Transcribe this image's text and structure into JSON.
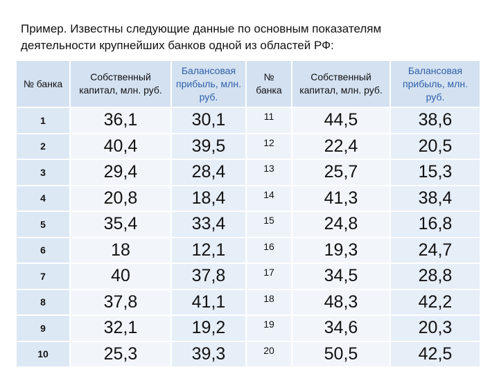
{
  "title": "Пример. Известны следующие данные по основным показателям деятельности крупнейших банков одной из областей РФ:",
  "table": {
    "headers": [
      "№ банка",
      "Собственный капитал, млн. руб.",
      "Балансовая прибыль, млн. руб.",
      "№ банка",
      "Собственный капитал, млн. руб.",
      "Балансовая прибыль, млн. руб."
    ],
    "rows": [
      [
        "1",
        "36,1",
        "30,1",
        "11",
        "44,5",
        "38,6"
      ],
      [
        "2",
        "40,4",
        "39,5",
        "12",
        "22,4",
        "20,5"
      ],
      [
        "3",
        "29,4",
        "28,4",
        "13",
        "25,7",
        "15,3"
      ],
      [
        "4",
        "20,8",
        "18,4",
        "14",
        "41,3",
        "38,4"
      ],
      [
        "5",
        "35,4",
        "33,4",
        "15",
        "24,8",
        "16,8"
      ],
      [
        "6",
        "18",
        "12,1",
        "16",
        "19,3",
        "24,7"
      ],
      [
        "7",
        "40",
        "37,8",
        "17",
        "34,5",
        "28,8"
      ],
      [
        "8",
        "37,8",
        "41,1",
        "18",
        "48,3",
        "42,2"
      ],
      [
        "9",
        "32,1",
        "19,2",
        "19",
        "34,6",
        "20,3"
      ],
      [
        "10",
        "25,3",
        "39,3",
        "20",
        "50,5",
        "42,5"
      ]
    ]
  }
}
